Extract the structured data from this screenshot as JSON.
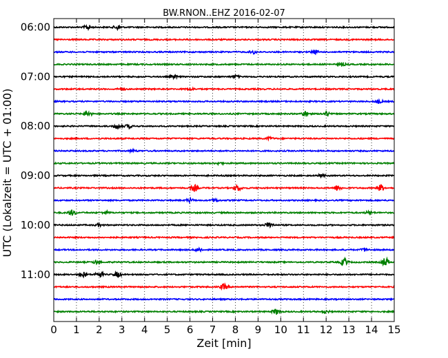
{
  "chart_data": {
    "type": "line",
    "title": "BW.RNON..EHZ 2016-02-07",
    "xlabel": "Zeit  [min]",
    "ylabel": "UTC (Lokalzeit = UTC + 01:00)",
    "xlim": [
      0,
      15
    ],
    "x_ticks": [
      "0",
      "1",
      "2",
      "3",
      "4",
      "5",
      "6",
      "7",
      "8",
      "9",
      "10",
      "11",
      "12",
      "13",
      "14",
      "15"
    ],
    "y_ticks": [
      "06:00",
      "07:00",
      "08:00",
      "09:00",
      "10:00",
      "11:00"
    ],
    "grid": "vertical dotted",
    "trace_colors": [
      "#000000",
      "#ff0000",
      "#0000ff",
      "#008000"
    ],
    "traces": [
      {
        "start": "06:00",
        "bursts": [
          [
            1.5,
            0.7
          ],
          [
            2.8,
            0.6
          ]
        ]
      },
      {
        "start": "06:15",
        "bursts": []
      },
      {
        "start": "06:30",
        "bursts": [
          [
            8.8,
            0.5
          ],
          [
            11.5,
            0.5
          ]
        ]
      },
      {
        "start": "06:45",
        "bursts": [
          [
            12.7,
            0.4
          ]
        ]
      },
      {
        "start": "07:00",
        "bursts": [
          [
            5.3,
            0.4
          ],
          [
            8.0,
            0.4
          ]
        ]
      },
      {
        "start": "07:15",
        "bursts": [
          [
            3.0,
            0.4
          ],
          [
            6.0,
            0.4
          ]
        ]
      },
      {
        "start": "07:30",
        "bursts": [
          [
            14.3,
            0.5
          ]
        ]
      },
      {
        "start": "07:45",
        "bursts": [
          [
            1.5,
            0.8
          ],
          [
            11.1,
            0.8
          ],
          [
            12.0,
            0.6
          ]
        ]
      },
      {
        "start": "08:00",
        "bursts": [
          [
            2.8,
            0.7
          ],
          [
            3.3,
            0.5
          ]
        ]
      },
      {
        "start": "08:15",
        "bursts": [
          [
            9.5,
            0.4
          ]
        ]
      },
      {
        "start": "08:30",
        "bursts": [
          [
            3.5,
            0.3
          ]
        ]
      },
      {
        "start": "08:45",
        "bursts": [
          [
            7.3,
            0.3
          ]
        ]
      },
      {
        "start": "09:00",
        "bursts": [
          [
            11.8,
            0.3
          ]
        ]
      },
      {
        "start": "09:15",
        "bursts": [
          [
            6.2,
            0.9
          ],
          [
            8.1,
            0.9
          ],
          [
            12.5,
            0.8
          ],
          [
            14.4,
            1.0
          ]
        ]
      },
      {
        "start": "09:30",
        "bursts": [
          [
            6.0,
            0.5
          ],
          [
            7.1,
            0.4
          ]
        ]
      },
      {
        "start": "09:45",
        "bursts": [
          [
            0.8,
            0.8
          ],
          [
            2.3,
            0.4
          ],
          [
            13.9,
            0.4
          ]
        ]
      },
      {
        "start": "10:00",
        "bursts": [
          [
            9.5,
            1.0
          ],
          [
            2.0,
            0.4
          ]
        ]
      },
      {
        "start": "10:15",
        "bursts": []
      },
      {
        "start": "10:30",
        "bursts": [
          [
            6.4,
            0.6
          ],
          [
            13.7,
            0.4
          ]
        ]
      },
      {
        "start": "10:45",
        "bursts": [
          [
            1.9,
            0.6
          ],
          [
            12.8,
            1.0
          ],
          [
            14.6,
            1.3
          ]
        ]
      },
      {
        "start": "11:00",
        "bursts": [
          [
            1.3,
            0.7
          ],
          [
            2.0,
            0.9
          ],
          [
            2.8,
            0.7
          ]
        ]
      },
      {
        "start": "11:15",
        "bursts": [
          [
            7.5,
            0.8
          ]
        ]
      },
      {
        "start": "11:30",
        "bursts": []
      },
      {
        "start": "11:45",
        "bursts": [
          [
            9.8,
            0.8
          ],
          [
            12.0,
            0.3
          ]
        ]
      }
    ]
  }
}
